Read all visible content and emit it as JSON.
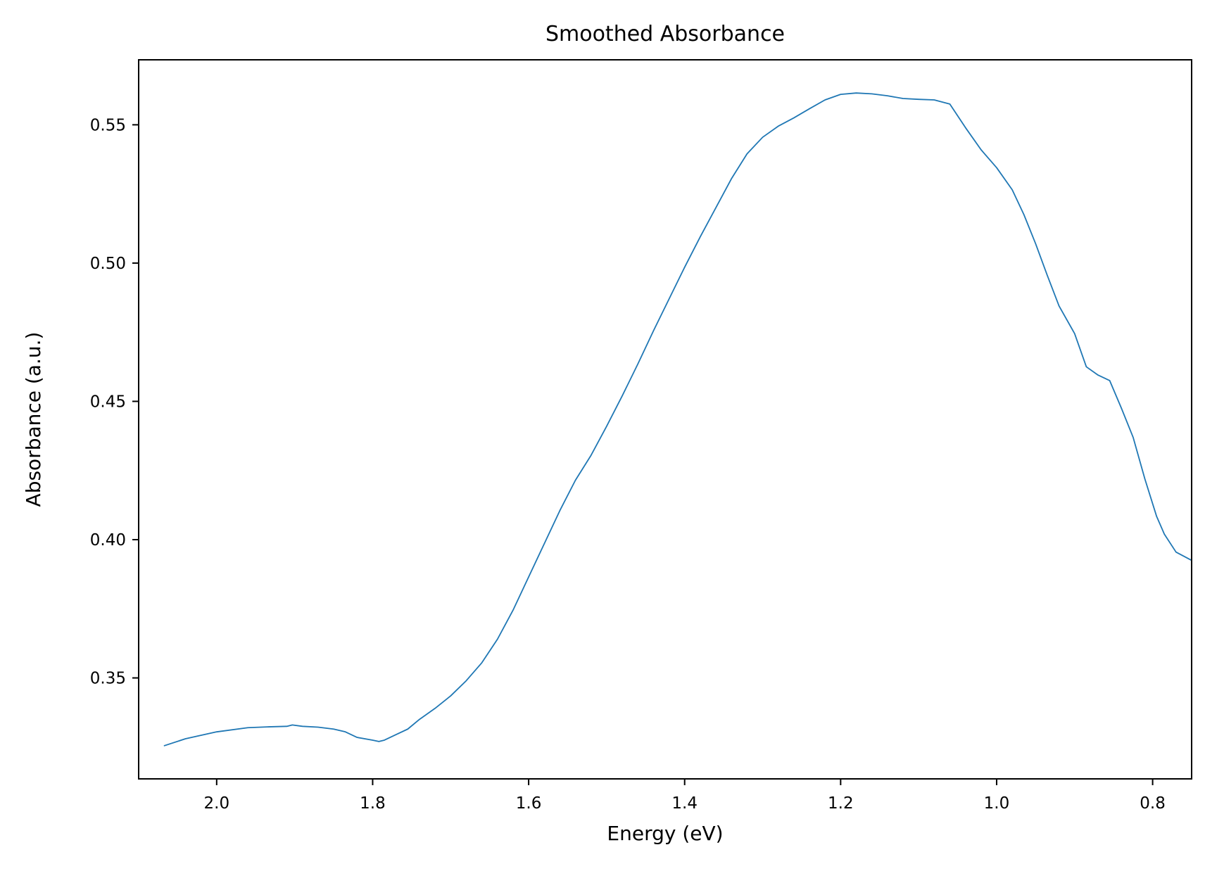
{
  "chart_data": {
    "type": "line",
    "title": "Smoothed Absorbance",
    "xlabel": "Energy (eV)",
    "ylabel": "Absorbance (a.u.)",
    "xlim": [
      2.1,
      0.75
    ],
    "ylim": [
      0.3135,
      0.5735
    ],
    "x_reversed": true,
    "grid": false,
    "x_ticks": [
      2.0,
      1.8,
      1.6,
      1.4,
      1.2,
      1.0,
      0.8
    ],
    "x_tick_labels": [
      "2.0",
      "1.8",
      "1.6",
      "1.4",
      "1.2",
      "1.0",
      "0.8"
    ],
    "y_ticks": [
      0.35,
      0.4,
      0.45,
      0.5,
      0.55
    ],
    "y_tick_labels": [
      "0.35",
      "0.40",
      "0.45",
      "0.50",
      "0.55"
    ],
    "series": [
      {
        "color": "#1f77b4",
        "x": [
          2.067,
          2.04,
          2.0,
          1.96,
          1.935,
          1.91,
          1.903,
          1.89,
          1.87,
          1.85,
          1.835,
          1.82,
          1.8,
          1.792,
          1.785,
          1.77,
          1.755,
          1.74,
          1.72,
          1.7,
          1.68,
          1.66,
          1.64,
          1.62,
          1.6,
          1.58,
          1.56,
          1.54,
          1.52,
          1.5,
          1.48,
          1.46,
          1.44,
          1.42,
          1.4,
          1.38,
          1.36,
          1.34,
          1.32,
          1.3,
          1.28,
          1.26,
          1.24,
          1.22,
          1.2,
          1.18,
          1.16,
          1.14,
          1.12,
          1.1,
          1.08,
          1.06,
          1.04,
          1.02,
          1.0,
          0.98,
          0.965,
          0.95,
          0.935,
          0.92,
          0.9,
          0.885,
          0.87,
          0.855,
          0.84,
          0.825,
          0.81,
          0.795,
          0.785,
          0.77,
          0.75
        ],
        "y": [
          0.3255,
          0.328,
          0.3305,
          0.332,
          0.3323,
          0.3325,
          0.333,
          0.3325,
          0.3322,
          0.3315,
          0.3305,
          0.3285,
          0.3275,
          0.327,
          0.3275,
          0.3295,
          0.3315,
          0.335,
          0.339,
          0.3435,
          0.349,
          0.3555,
          0.364,
          0.3745,
          0.3865,
          0.3985,
          0.4105,
          0.4215,
          0.4305,
          0.441,
          0.452,
          0.4635,
          0.4755,
          0.487,
          0.4985,
          0.5095,
          0.52,
          0.5305,
          0.5395,
          0.5455,
          0.5495,
          0.5525,
          0.5558,
          0.559,
          0.561,
          0.5615,
          0.5612,
          0.5605,
          0.5595,
          0.5592,
          0.559,
          0.5575,
          0.549,
          0.541,
          0.5345,
          0.5265,
          0.5175,
          0.507,
          0.4955,
          0.4845,
          0.4745,
          0.4625,
          0.4595,
          0.4575,
          0.4475,
          0.437,
          0.422,
          0.4085,
          0.402,
          0.3955,
          0.3925
        ]
      }
    ]
  }
}
